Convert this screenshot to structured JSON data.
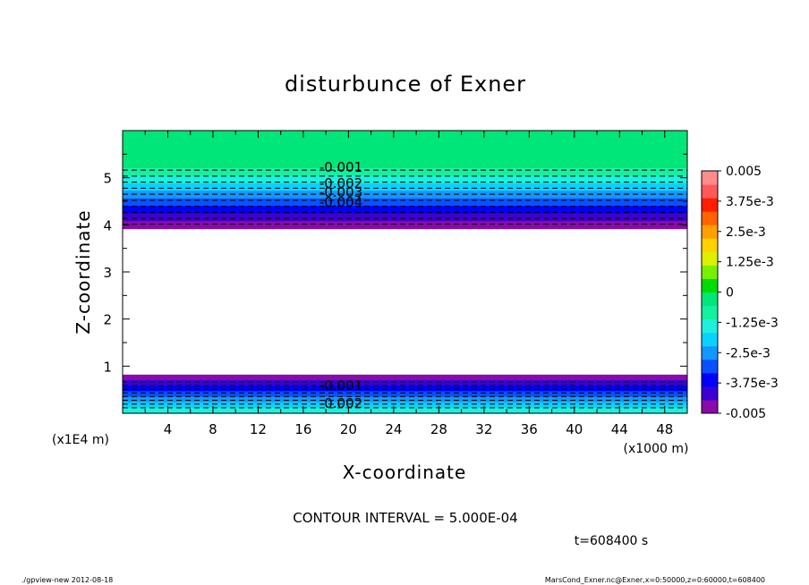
{
  "chart_data": {
    "type": "heatmap",
    "title": "disturbunce of Exner",
    "xlabel": "X-coordinate",
    "ylabel": "Z-coordinate",
    "x_scale_note": "(x1000 m)",
    "y_scale_note": "(x1E4 m)",
    "xlim": [
      0,
      50
    ],
    "ylim": [
      0,
      6
    ],
    "x_ticks": [
      "4",
      "8",
      "12",
      "16",
      "20",
      "24",
      "28",
      "32",
      "36",
      "40",
      "44",
      "48"
    ],
    "y_ticks": [
      "1",
      "2",
      "3",
      "4",
      "5"
    ],
    "contour_interval_text": "CONTOUR INTERVAL = 5.000E-04",
    "time_text": "t=608400 s",
    "contour_labels_top": [
      "-0.001",
      "-0.002",
      "-0.003",
      "-0.004"
    ],
    "contour_labels_bottom": [
      "-0.001",
      "-0.002"
    ],
    "colorbar": {
      "range": [
        -0.005,
        0.005
      ],
      "tick_labels": [
        "0.005",
        "3.75e-3",
        "2.5e-3",
        "1.25e-3",
        "0",
        "-1.25e-3",
        "-2.5e-3",
        "-3.75e-3",
        "-0.005"
      ],
      "colors": [
        "#8a0aaa",
        "#3c00d2",
        "#0000ff",
        "#0a50ff",
        "#1496ff",
        "#0ad2ff",
        "#1ef0dc",
        "#14f0a0",
        "#00e678",
        "#00dc00",
        "#78f000",
        "#dcf000",
        "#ffd200",
        "#ffa000",
        "#ff6400",
        "#ff1e00",
        "#ff5a5a",
        "#ff8c8c"
      ]
    },
    "bands": [
      {
        "z_from": 5.2,
        "z_to": 6.0,
        "value": "0 to 5e-4",
        "color": "#00e678"
      },
      {
        "z_from": 3.92,
        "z_to": 5.2,
        "value": "decreasing to below -0.005",
        "colors_top_to_bottom": [
          "#14f0a0",
          "#1ef0dc",
          "#0ad2ff",
          "#1496ff",
          "#0a50ff",
          "#0000ff",
          "#3c00d2",
          "#8a0aaa"
        ]
      },
      {
        "z_from": 0.0,
        "z_to": 0.82,
        "value": "decreasing to below -0.005",
        "colors_top_to_bottom": [
          "#8a0aaa",
          "#3c00d2",
          "#0000ff",
          "#0a50ff",
          "#1496ff",
          "#0ad2ff",
          "#1ef0dc"
        ]
      }
    ]
  },
  "footer": {
    "left": "./gpview-new   2012-08-18",
    "right": "MarsCond_Exner.nc@Exner,x=0:50000,z=0:60000,t=608400"
  }
}
